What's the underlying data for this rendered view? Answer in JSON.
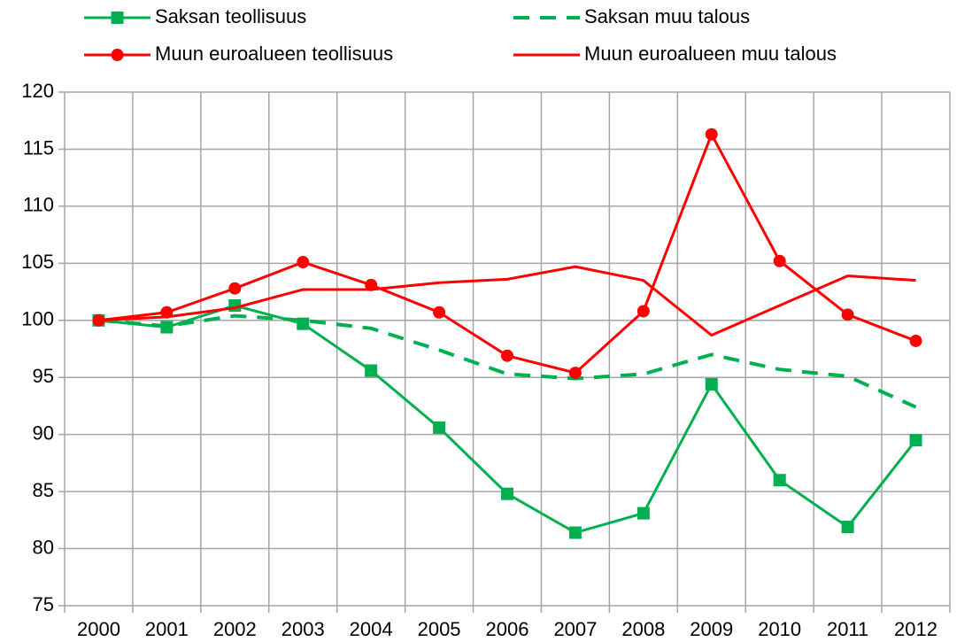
{
  "chart_data": {
    "type": "line",
    "categories": [
      "2000",
      "2001",
      "2002",
      "2003",
      "2004",
      "2005",
      "2006",
      "2007",
      "2008",
      "2009",
      "2010",
      "2011",
      "2012"
    ],
    "series": [
      {
        "name": "Saksan teollisuus",
        "color": "#00b050",
        "marker": "square",
        "dash": false,
        "values": [
          100,
          99.4,
          101.3,
          99.7,
          95.6,
          90.6,
          84.8,
          81.4,
          83.1,
          94.4,
          86.0,
          81.9,
          89.5
        ]
      },
      {
        "name": "Saksan muu talous",
        "color": "#00b050",
        "marker": "none",
        "dash": true,
        "values": [
          100,
          99.5,
          100.4,
          100.0,
          99.3,
          97.4,
          95.3,
          94.9,
          95.3,
          97.0,
          95.7,
          95.1,
          92.4
        ]
      },
      {
        "name": "Muun euroalueen teollisuus",
        "color": "#ff0000",
        "marker": "circle",
        "dash": false,
        "values": [
          100,
          100.7,
          102.8,
          105.1,
          103.1,
          100.7,
          96.9,
          95.4,
          100.8,
          116.3,
          105.2,
          100.5,
          98.2
        ]
      },
      {
        "name": "Muun euroalueen muu talous",
        "color": "#ff0000",
        "marker": "none",
        "dash": false,
        "values": [
          100,
          100.3,
          101.1,
          102.7,
          102.7,
          103.3,
          103.6,
          104.7,
          103.5,
          98.7,
          101.3,
          103.9,
          103.5
        ]
      }
    ],
    "ylim": [
      75,
      120
    ],
    "yticks": [
      75,
      80,
      85,
      90,
      95,
      100,
      105,
      110,
      115,
      120
    ],
    "grid": true
  }
}
